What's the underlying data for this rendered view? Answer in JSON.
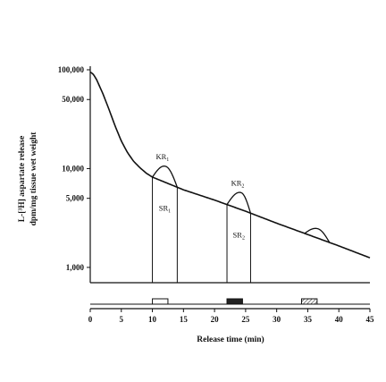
{
  "chart_data": {
    "type": "line",
    "xlabel": "Release time (min)",
    "ylabel_line1": "L-[³H] aspartate release",
    "ylabel_line2": "dpm/mg tissue wet weight",
    "y_scale": "log",
    "ylim": [
      700,
      100000
    ],
    "xlim": [
      0,
      45
    ],
    "x_ticks": [
      0,
      5,
      10,
      15,
      20,
      25,
      30,
      35,
      40,
      45
    ],
    "y_ticks": [
      {
        "value": 1000,
        "label": "1,000"
      },
      {
        "value": 5000,
        "label": "5,000"
      },
      {
        "value": 10000,
        "label": "10,000"
      },
      {
        "value": 50000,
        "label": "50,000"
      },
      {
        "value": 100000,
        "label": "100,000"
      }
    ],
    "series": [
      {
        "x": [
          0,
          0.5,
          1,
          2,
          3,
          4,
          5,
          6,
          7,
          8,
          9,
          10,
          15,
          20,
          25,
          30,
          35,
          40,
          45
        ],
        "y": [
          95000,
          90000,
          80000,
          58000,
          40000,
          27000,
          19000,
          14500,
          11800,
          10200,
          9000,
          8200,
          6100,
          4800,
          3700,
          2800,
          2150,
          1650,
          1250
        ]
      }
    ],
    "peaks": [
      {
        "label": "KR",
        "sub": "1",
        "x_start": 10,
        "x_peak": 12.2,
        "x_end": 14,
        "y_peak": 10500
      },
      {
        "label": "KR",
        "sub": "2",
        "x_start": 22,
        "x_peak": 24.3,
        "x_end": 25.8,
        "y_peak": 5700
      },
      {
        "label": "",
        "sub": "",
        "x_start": 34.5,
        "x_peak": 36.7,
        "x_end": 38.5,
        "y_peak": 2450
      }
    ],
    "areas": [
      {
        "label": "SR",
        "sub": "1",
        "x_start": 10,
        "x_end": 14
      },
      {
        "label": "SR",
        "sub": "2",
        "x_start": 22,
        "x_end": 25.8
      }
    ],
    "stimulus_bars": [
      {
        "x_start": 10,
        "x_end": 12.5,
        "fill": "open"
      },
      {
        "x_start": 22,
        "x_end": 24.5,
        "fill": "solid"
      },
      {
        "x_start": 34,
        "x_end": 36.5,
        "fill": "hatched"
      }
    ]
  }
}
